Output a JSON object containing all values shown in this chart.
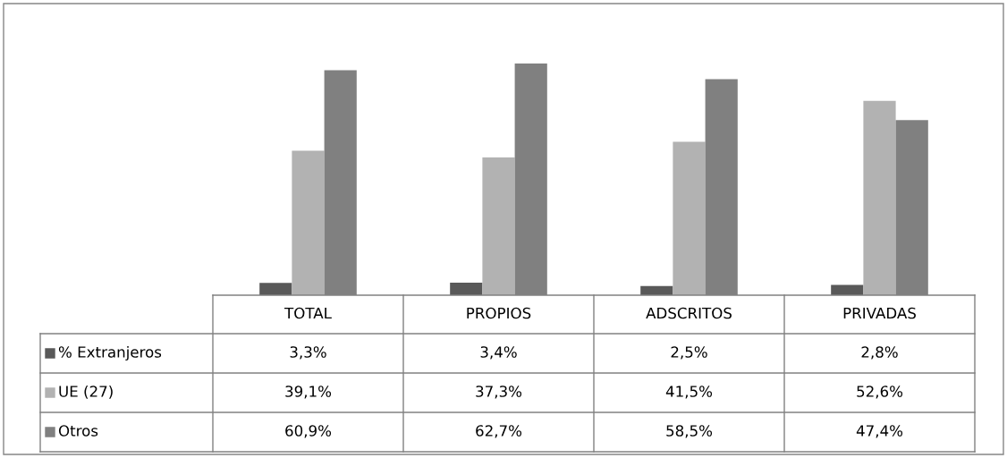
{
  "chart_data": {
    "type": "bar",
    "categories": [
      "TOTAL",
      "PROPIOS",
      "ADSCRITOS",
      "PRIVADAS"
    ],
    "series": [
      {
        "name": "% Extranjeros",
        "color": "#595959",
        "values": [
          3.3,
          3.4,
          2.5,
          2.8
        ],
        "value_labels": [
          "3,3%",
          "3,4%",
          "2,5%",
          "2,8%"
        ]
      },
      {
        "name": "UE (27)",
        "color": "#b2b2b2",
        "values": [
          39.1,
          37.3,
          41.5,
          52.6
        ],
        "value_labels": [
          "39,1%",
          "37,3%",
          "41,5%",
          "52,6%"
        ]
      },
      {
        "name": "Otros",
        "color": "#808080",
        "values": [
          60.9,
          62.7,
          58.5,
          47.4
        ],
        "value_labels": [
          "60,9%",
          "62,7%",
          "58,5%",
          "47,4%"
        ]
      }
    ],
    "legend": "bottom left"
  }
}
